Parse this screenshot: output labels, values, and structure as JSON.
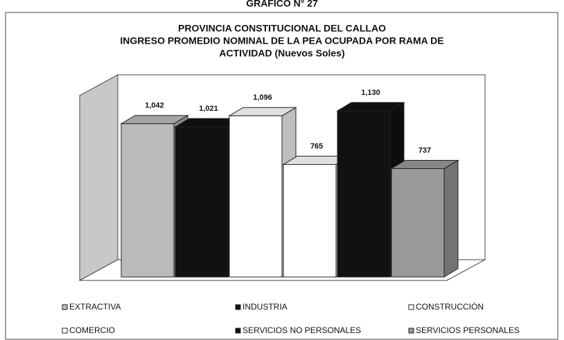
{
  "heading": "GRAFICO N° 27",
  "chart_data": {
    "type": "bar3d",
    "title": [
      "PROVINCIA CONSTITUCIONAL DEL CALLAO",
      "INGRESO PROMEDIO NOMINAL DE LA PEA OCUPADA POR RAMA DE",
      "ACTIVIDAD (Nuevos Soles)"
    ],
    "categories": [
      "EXTRACTIVA",
      "INDUSTRIA",
      "CONSTRUCCIÓN",
      "COMERCIO",
      "SERVICIOS NO PERSONALES",
      "SERVICIOS PERSONALES"
    ],
    "values": [
      1042,
      1021,
      1096,
      765,
      1130,
      737
    ],
    "value_labels": [
      "1,042",
      "1,021",
      "1,096",
      "765",
      "1,130",
      "737"
    ],
    "colors": [
      "#bbbbbb",
      "#111111",
      "#ffffff",
      "#ffffff",
      "#111111",
      "#999999"
    ]
  }
}
